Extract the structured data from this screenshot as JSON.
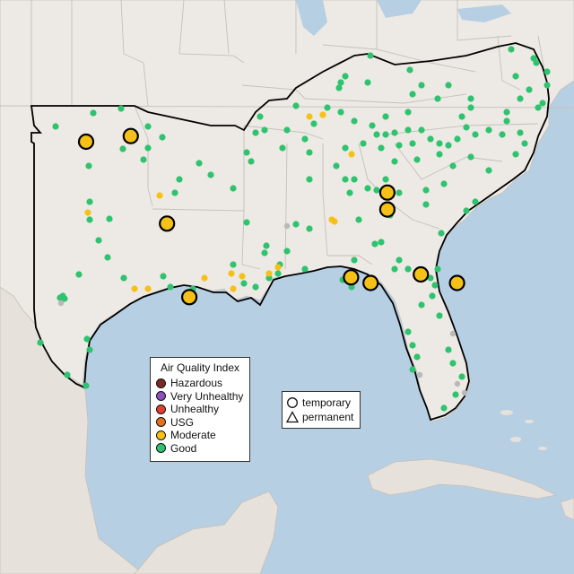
{
  "colors": {
    "water": "#b7cfe3",
    "land": "#ede9e4",
    "land_mexico": "#e6e1da",
    "state_border": "#c4c0ba",
    "region_border": "#000000",
    "good": "#2ec36f",
    "moderate": "#f5c116",
    "usg": "#e2701e",
    "unhealthy": "#e23d2f",
    "very_unhealthy": "#8e4fbf",
    "hazardous": "#7a2a22",
    "no_data": "#b9b9b9"
  },
  "legend": {
    "title": "Air Quality Index",
    "items": [
      {
        "label": "Hazardous",
        "color": "#7a2a22"
      },
      {
        "label": "Very Unhealthy",
        "color": "#8e4fbf"
      },
      {
        "label": "Unhealthy",
        "color": "#e23d2f"
      },
      {
        "label": "USG",
        "color": "#e2701e"
      },
      {
        "label": "Moderate",
        "color": "#f5c116"
      },
      {
        "label": "Good",
        "color": "#2ec36f"
      }
    ]
  },
  "shape_legend": {
    "temporary": "temporary",
    "permanent": "permanent"
  },
  "temporary_monitors": [
    {
      "lon": -97.6,
      "lat": 35.4,
      "aqi": "Moderate"
    },
    {
      "lon": -96.0,
      "lat": 35.6,
      "aqi": "Moderate"
    },
    {
      "lon": -94.7,
      "lat": 32.5,
      "aqi": "Moderate"
    },
    {
      "lon": -93.9,
      "lat": 29.9,
      "aqi": "Moderate"
    },
    {
      "lon": -86.8,
      "lat": 33.6,
      "aqi": "Moderate"
    },
    {
      "lon": -86.8,
      "lat": 33.0,
      "aqi": "Moderate"
    },
    {
      "lon": -88.1,
      "lat": 30.6,
      "aqi": "Moderate"
    },
    {
      "lon": -87.4,
      "lat": 30.4,
      "aqi": "Moderate"
    },
    {
      "lon": -85.6,
      "lat": 30.7,
      "aqi": "Moderate"
    },
    {
      "lon": -84.3,
      "lat": 30.4,
      "aqi": "Moderate"
    }
  ]
}
